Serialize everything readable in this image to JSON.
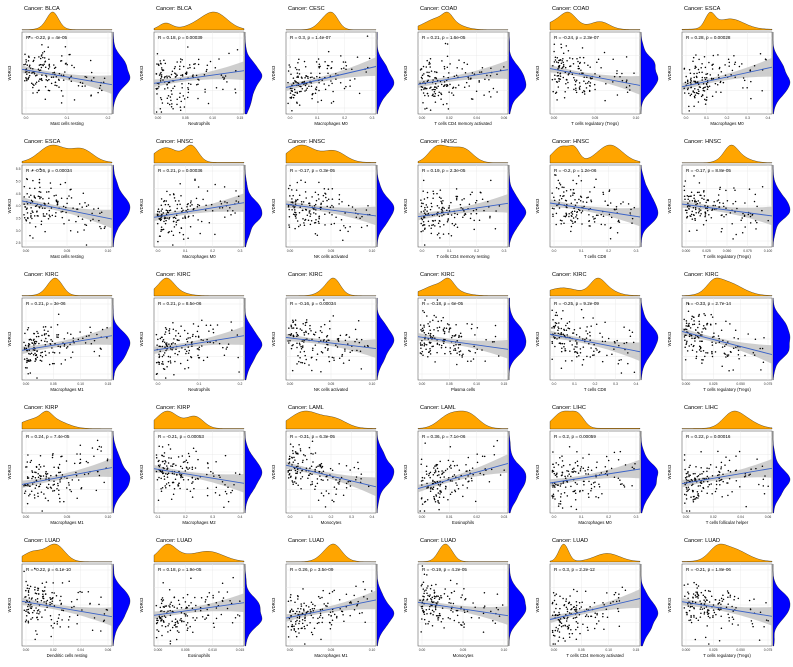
{
  "colors": {
    "top_density": "#FFA500",
    "right_density": "#0000FF",
    "trend_line": "#3A62C7",
    "confidence_band": "#BEBEBE",
    "points": "#000000",
    "grid": "#E6E6E6"
  },
  "y_label": "WDR43",
  "chart_data": [
    {
      "type": "scatter",
      "cancer": "BLCA",
      "title": "Cancer: BLCA",
      "xlabel": "Mast cells resting",
      "stat": "R = -0.22, p = 4e-05",
      "slope": -0.22,
      "x_ticks": [
        "0.0",
        "0.1",
        "0.2"
      ],
      "y_ticks": []
    },
    {
      "type": "scatter",
      "cancer": "BLCA",
      "title": "Cancer: BLCA",
      "xlabel": "Neutrophils",
      "stat": "R = 0.18, p = 0.00039",
      "slope": 0.18,
      "x_ticks": [
        "0.00",
        "0.05",
        "0.10",
        "0.15"
      ],
      "y_ticks": []
    },
    {
      "type": "scatter",
      "cancer": "CESC",
      "title": "Cancer: CESC",
      "xlabel": "Macrophages M0",
      "stat": "R = 0.3, p = 1.4e-07",
      "slope": 0.3,
      "x_ticks": [
        "0.0",
        "0.1",
        "0.2",
        "0.3"
      ],
      "y_ticks": []
    },
    {
      "type": "scatter",
      "cancer": "COAD",
      "title": "Cancer: COAD",
      "xlabel": "T cells CD4 memory activated",
      "stat": "R = 0.21, p = 1.6e-05",
      "slope": 0.21,
      "x_ticks": [
        "0.00",
        "0.02",
        "0.04",
        "0.06"
      ],
      "y_ticks": []
    },
    {
      "type": "scatter",
      "cancer": "COAD",
      "title": "Cancer: COAD",
      "xlabel": "T cells regulatory (Tregs)",
      "stat": "R = -0.24, p = 2.3e-07",
      "slope": -0.24,
      "x_ticks": [
        "0.00",
        "0.05",
        "0.10"
      ],
      "y_ticks": []
    },
    {
      "type": "scatter",
      "cancer": "ESCA",
      "title": "Cancer: ESCA",
      "xlabel": "Macrophages M0",
      "stat": "R = 0.28, p = 0.00028",
      "slope": 0.28,
      "x_ticks": [
        "0.0",
        "0.1",
        "0.2",
        "0.3",
        "0.4"
      ],
      "y_ticks": []
    },
    {
      "type": "scatter",
      "cancer": "ESCA",
      "title": "Cancer: ESCA",
      "xlabel": "Mast cells resting",
      "stat": "R = -0.26, p = 0.00034",
      "slope": -0.26,
      "x_ticks": [
        "0.00",
        "0.05",
        "0.10"
      ],
      "y_ticks": [
        "2.5",
        "3.0",
        "3.5",
        "4.0",
        "4.5",
        "5.0",
        "5.5"
      ]
    },
    {
      "type": "scatter",
      "cancer": "HNSC",
      "title": "Cancer: HNSC",
      "xlabel": "Macrophages M0",
      "stat": "R = 0.21, p = 0.00036",
      "slope": 0.21,
      "x_ticks": [
        "0.0",
        "0.1",
        "0.2",
        "0.3"
      ],
      "y_ticks": []
    },
    {
      "type": "scatter",
      "cancer": "HNSC",
      "title": "Cancer: HNSC",
      "xlabel": "NK cells activated",
      "stat": "R = -0.17, p = 0.3e-05",
      "slope": -0.17,
      "x_ticks": [
        "0.00",
        "0.05",
        "0.10"
      ],
      "y_ticks": []
    },
    {
      "type": "scatter",
      "cancer": "HNSC",
      "title": "Cancer: HNSC",
      "xlabel": "T cells CD4 memory resting",
      "stat": "R = 0.19, p = 2.3e-05",
      "slope": 0.19,
      "x_ticks": [
        "0.0",
        "0.1",
        "0.2",
        "0.3"
      ],
      "y_ticks": []
    },
    {
      "type": "scatter",
      "cancer": "HNSC",
      "title": "Cancer: HNSC",
      "xlabel": "T cells CD8",
      "stat": "R = -0.2, p = 1.2e-06",
      "slope": -0.2,
      "x_ticks": [
        "0.0",
        "0.1",
        "0.2",
        "0.3"
      ],
      "y_ticks": []
    },
    {
      "type": "scatter",
      "cancer": "HNSC",
      "title": "Cancer: HNSC",
      "xlabel": "T cells regulatory (Tregs)",
      "stat": "R = -0.17, p = 8.8e-05",
      "slope": -0.17,
      "x_ticks": [
        "0.000",
        "0.025",
        "0.050",
        "0.075",
        "0.100"
      ],
      "y_ticks": []
    },
    {
      "type": "scatter",
      "cancer": "KIRC",
      "title": "Cancer: KIRC",
      "xlabel": "Macrophages M1",
      "stat": "R = 0.21, p = 3e-06",
      "slope": 0.21,
      "x_ticks": [
        "0.00",
        "0.05",
        "0.10",
        "0.15"
      ],
      "y_ticks": []
    },
    {
      "type": "scatter",
      "cancer": "KIRC",
      "title": "Cancer: KIRC",
      "xlabel": "Neutrophils",
      "stat": "R = 0.21, p = 8.5e-06",
      "slope": 0.21,
      "x_ticks": [
        "0.0",
        "0.1",
        "0.2"
      ],
      "y_ticks": []
    },
    {
      "type": "scatter",
      "cancer": "KIRC",
      "title": "Cancer: KIRC",
      "xlabel": "NK cells activated",
      "stat": "R = -0.16, p = 0.00034",
      "slope": -0.16,
      "x_ticks": [
        "0.00",
        "0.05",
        "0.10"
      ],
      "y_ticks": []
    },
    {
      "type": "scatter",
      "cancer": "KIRC",
      "title": "Cancer: KIRC",
      "xlabel": "Plasma cells",
      "stat": "R = -0.18, p = 6e-05",
      "slope": -0.18,
      "x_ticks": [
        "0.00",
        "0.05",
        "0.10",
        "0.15"
      ],
      "y_ticks": []
    },
    {
      "type": "scatter",
      "cancer": "KIRC",
      "title": "Cancer: KIRC",
      "xlabel": "T cells CD8",
      "stat": "R = -0.25, p = 9.2e-09",
      "slope": -0.25,
      "x_ticks": [
        "0.0",
        "0.1",
        "0.2",
        "0.3",
        "0.4"
      ],
      "y_ticks": []
    },
    {
      "type": "scatter",
      "cancer": "KIRC",
      "title": "Cancer: KIRC",
      "xlabel": "T cells regulatory (Tregs)",
      "stat": "R = -0.33, p = 2.7e-14",
      "slope": -0.33,
      "x_ticks": [
        "0.000",
        "0.025",
        "0.050",
        "0.075"
      ],
      "y_ticks": []
    },
    {
      "type": "scatter",
      "cancer": "KIRP",
      "title": "Cancer: KIRP",
      "xlabel": "Macrophages M1",
      "stat": "R = 0.24, p = 7.4e-05",
      "slope": 0.24,
      "x_ticks": [
        "0.00",
        "0.05",
        "0.10"
      ],
      "y_ticks": []
    },
    {
      "type": "scatter",
      "cancer": "KIRP",
      "title": "Cancer: KIRP",
      "xlabel": "Macrophages M2",
      "stat": "R = -0.21, p = 0.00053",
      "slope": -0.21,
      "x_ticks": [
        "0.1",
        "0.2",
        "0.3",
        "0.4"
      ],
      "y_ticks": []
    },
    {
      "type": "scatter",
      "cancer": "LAML",
      "title": "Cancer: LAML",
      "xlabel": "Monocytes",
      "stat": "R = -0.31, p = 6.3e-05",
      "slope": -0.31,
      "x_ticks": [
        "0.0",
        "0.1",
        "0.2",
        "0.3",
        "0.4"
      ],
      "y_ticks": []
    },
    {
      "type": "scatter",
      "cancer": "LAML",
      "title": "Cancer: LAML",
      "xlabel": "Eosinophils",
      "stat": "R = 0.36, p = 7.1e-06",
      "slope": 0.36,
      "x_ticks": [
        "0.00",
        "0.01",
        "0.02",
        "0.03"
      ],
      "y_ticks": []
    },
    {
      "type": "scatter",
      "cancer": "LIHC",
      "title": "Cancer: LIHC",
      "xlabel": "Macrophages M0",
      "stat": "R = 0.2, p = 0.00059",
      "slope": 0.2,
      "x_ticks": [
        "0.0",
        "0.1",
        "0.2",
        "0.3"
      ],
      "y_ticks": []
    },
    {
      "type": "scatter",
      "cancer": "LIHC",
      "title": "Cancer: LIHC",
      "xlabel": "T cells follicular helper",
      "stat": "R = 0.22, p = 0.00016",
      "slope": 0.22,
      "x_ticks": [
        "0.00",
        "0.02",
        "0.04",
        "0.06"
      ],
      "y_ticks": []
    },
    {
      "type": "scatter",
      "cancer": "LUAD",
      "title": "Cancer: LUAD",
      "xlabel": "Dendritic cells resting",
      "stat": "R = -0.22, p = 6.1e-10",
      "slope": -0.22,
      "x_ticks": [
        "0.00",
        "0.02",
        "0.04",
        "0.06"
      ],
      "y_ticks": []
    },
    {
      "type": "scatter",
      "cancer": "LUAD",
      "title": "Cancer: LUAD",
      "xlabel": "Eosinophils",
      "stat": "R = 0.18, p = 1.9e-05",
      "slope": 0.18,
      "x_ticks": [
        "0.000",
        "0.005",
        "0.010",
        "0.015"
      ],
      "y_ticks": []
    },
    {
      "type": "scatter",
      "cancer": "LUAD",
      "title": "Cancer: LUAD",
      "xlabel": "Macrophages M1",
      "stat": "R = 0.26, p = 3.5e-09",
      "slope": 0.26,
      "x_ticks": [
        "0.00",
        "0.05",
        "0.10"
      ],
      "y_ticks": []
    },
    {
      "type": "scatter",
      "cancer": "LUAD",
      "title": "Cancer: LUAD",
      "xlabel": "Monocytes",
      "stat": "R = -0.19, p = 4.2e-05",
      "slope": -0.19,
      "x_ticks": [
        "0.00",
        "0.05",
        "0.10"
      ],
      "y_ticks": []
    },
    {
      "type": "scatter",
      "cancer": "LUAD",
      "title": "Cancer: LUAD",
      "xlabel": "T cells CD4 memory activated",
      "stat": "R = 0.3, p = 2.2e-12",
      "slope": 0.3,
      "x_ticks": [
        "0.00",
        "0.05",
        "0.10",
        "0.15"
      ],
      "y_ticks": []
    },
    {
      "type": "scatter",
      "cancer": "LUAD",
      "title": "Cancer: LUAD",
      "xlabel": "T cells regulatory (Tregs)",
      "stat": "R = -0.21, p = 1.8e-06",
      "slope": -0.21,
      "x_ticks": [
        "0.000",
        "0.025",
        "0.050",
        "0.075"
      ],
      "y_ticks": []
    }
  ]
}
